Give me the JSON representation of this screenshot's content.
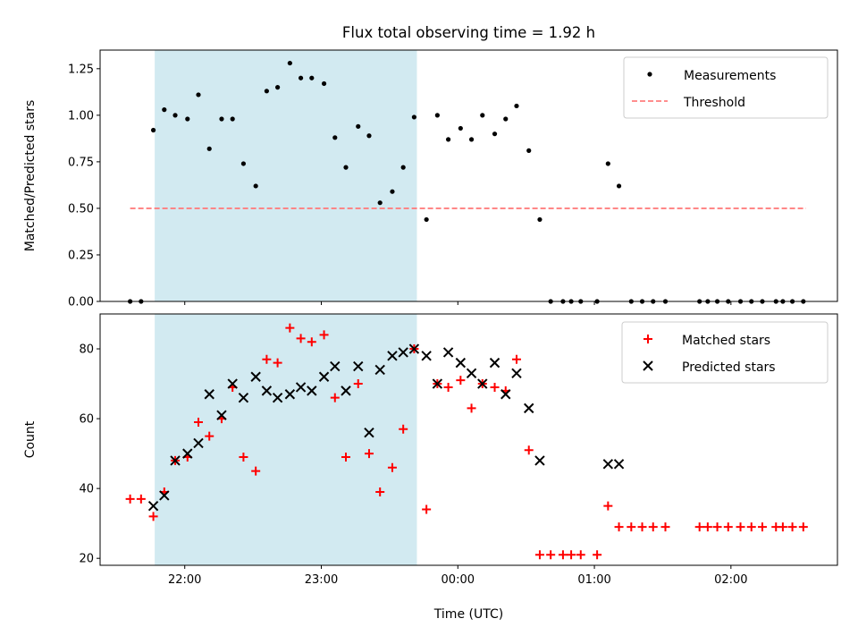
{
  "chart_data": [
    {
      "type": "scatter",
      "title": "Flux total observing time = 1.92 h",
      "xlabel": "",
      "ylabel": "Matched/Predicted stars",
      "ylim": [
        0,
        1.35
      ],
      "yticks": [
        "0.00",
        "0.25",
        "0.50",
        "0.75",
        "1.00",
        "1.25"
      ],
      "xticks": [
        "22:00",
        "23:00",
        "00:00",
        "01:00",
        "02:00"
      ],
      "xtick_values_hours": [
        22,
        23,
        24,
        25,
        26
      ],
      "xlim_hours": [
        21.38,
        26.78
      ],
      "shaded_interval_hours": [
        21.78,
        23.7
      ],
      "shade_color": "#add8e6",
      "legend": "upper right",
      "threshold": {
        "name": "Threshold",
        "value": 0.5,
        "x_hours": [
          21.6,
          26.55
        ],
        "color": "#ff7f7f"
      },
      "series": [
        {
          "name": "Measurements",
          "color": "#000000",
          "x_hours": [
            21.6,
            21.68,
            21.77,
            21.85,
            21.93,
            22.02,
            22.1,
            22.18,
            22.27,
            22.35,
            22.43,
            22.52,
            22.6,
            22.68,
            22.77,
            22.85,
            22.93,
            23.02,
            23.1,
            23.18,
            23.27,
            23.35,
            23.43,
            23.52,
            23.6,
            23.68,
            23.77,
            23.85,
            23.93,
            24.02,
            24.1,
            24.18,
            24.27,
            24.35,
            24.43,
            24.52,
            24.6,
            24.68,
            24.77,
            24.83,
            24.9,
            25.02,
            25.1,
            25.18,
            25.27,
            25.35,
            25.43,
            25.52,
            25.77,
            25.83,
            25.9,
            25.98,
            26.07,
            26.15,
            26.23,
            26.33,
            26.38,
            26.45,
            26.53
          ],
          "y": [
            0,
            0,
            0.92,
            1.03,
            1.0,
            0.98,
            1.11,
            0.82,
            0.98,
            0.98,
            0.74,
            0.62,
            1.13,
            1.15,
            1.28,
            1.2,
            1.2,
            1.17,
            0.88,
            0.72,
            0.94,
            0.89,
            0.53,
            0.59,
            0.72,
            0.99,
            0.44,
            1.0,
            0.87,
            0.93,
            0.87,
            1.0,
            0.9,
            0.98,
            1.05,
            0.81,
            0.44,
            0,
            0,
            0,
            0,
            0,
            0.74,
            0.62,
            0,
            0,
            0,
            0,
            0,
            0,
            0,
            0,
            0,
            0,
            0,
            0,
            0,
            0,
            0
          ]
        }
      ]
    },
    {
      "type": "scatter",
      "title": "",
      "xlabel": "Time (UTC)",
      "ylabel": "Count",
      "ylim": [
        18,
        90
      ],
      "yticks": [
        "20",
        "40",
        "60",
        "80"
      ],
      "xticks": [
        "22:00",
        "23:00",
        "00:00",
        "01:00",
        "02:00"
      ],
      "legend": "upper right",
      "series": [
        {
          "name": "Matched stars",
          "color": "#ff0000",
          "marker": "+",
          "x_hours": [
            21.6,
            21.68,
            21.77,
            21.85,
            21.93,
            22.02,
            22.1,
            22.18,
            22.27,
            22.35,
            22.43,
            22.52,
            22.6,
            22.68,
            22.77,
            22.85,
            22.93,
            23.02,
            23.1,
            23.18,
            23.27,
            23.35,
            23.43,
            23.52,
            23.6,
            23.68,
            23.77,
            23.85,
            23.93,
            24.02,
            24.1,
            24.18,
            24.27,
            24.35,
            24.43,
            24.52,
            24.6,
            24.68,
            24.77,
            24.83,
            24.9,
            25.02,
            25.1,
            25.18,
            25.27,
            25.35,
            25.43,
            25.52,
            25.77,
            25.83,
            25.9,
            25.98,
            26.07,
            26.15,
            26.23,
            26.33,
            26.38,
            26.45,
            26.53
          ],
          "y": [
            37,
            37,
            32,
            39,
            48,
            49,
            59,
            55,
            60,
            69,
            49,
            45,
            77,
            76,
            86,
            83,
            82,
            84,
            66,
            49,
            70,
            50,
            39,
            46,
            57,
            80,
            34,
            70,
            69,
            71,
            63,
            70,
            69,
            68,
            77,
            51,
            21,
            21,
            21,
            21,
            21,
            21,
            35,
            29,
            29,
            29,
            29,
            29,
            29,
            29,
            29,
            29,
            29,
            29,
            29,
            29,
            29,
            29,
            29
          ]
        },
        {
          "name": "Predicted stars",
          "color": "#000000",
          "marker": "x",
          "x_hours": [
            21.77,
            21.85,
            21.93,
            22.02,
            22.1,
            22.18,
            22.27,
            22.35,
            22.43,
            22.52,
            22.6,
            22.68,
            22.77,
            22.85,
            22.93,
            23.02,
            23.1,
            23.18,
            23.27,
            23.35,
            23.43,
            23.52,
            23.6,
            23.68,
            23.77,
            23.85,
            23.93,
            24.02,
            24.1,
            24.18,
            24.27,
            24.35,
            24.43,
            24.52,
            24.6,
            25.1,
            25.18
          ],
          "y": [
            35,
            38,
            48,
            50,
            53,
            67,
            61,
            70,
            66,
            72,
            68,
            66,
            67,
            69,
            68,
            72,
            75,
            68,
            75,
            56,
            74,
            78,
            79,
            80,
            78,
            70,
            79,
            76,
            73,
            70,
            76,
            67,
            73,
            63,
            48,
            47,
            47
          ]
        }
      ]
    }
  ]
}
